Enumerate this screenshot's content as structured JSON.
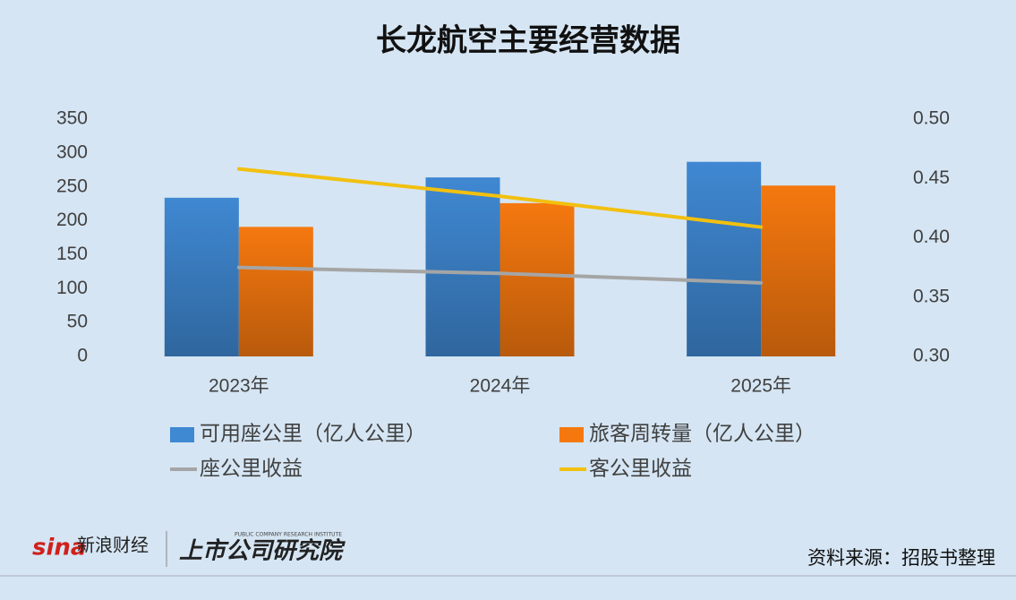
{
  "chart_data": {
    "type": "bar",
    "title": "长龙航空主要经营数据",
    "categories": [
      "2023年",
      "2024年",
      "2025年"
    ],
    "series": [
      {
        "name": "可用座公里（亿人公里）",
        "type": "bar",
        "color": "#3f88d2",
        "values": [
          234,
          264,
          287
        ]
      },
      {
        "name": "旅客周转量（亿人公里）",
        "type": "bar",
        "color": "#f5780f",
        "values": [
          191,
          226,
          252
        ]
      },
      {
        "name": "座公里收益",
        "type": "line",
        "axis": "y2",
        "color": "#a5a5a5",
        "values": [
          0.375,
          0.37,
          0.362
        ]
      },
      {
        "name": "客公里收益",
        "type": "line",
        "axis": "y2",
        "color": "#f2c00f",
        "values": [
          0.458,
          0.435,
          0.409
        ]
      }
    ],
    "ylim": [
      0,
      350
    ],
    "yticks": [
      0,
      50,
      100,
      150,
      200,
      250,
      300,
      350
    ],
    "y2lim": [
      0.3,
      0.5
    ],
    "y2ticks": [
      {
        "value": 0.3,
        "label": "0.30"
      },
      {
        "value": 0.35,
        "label": "0.35"
      },
      {
        "value": 0.4,
        "label": "0.40"
      },
      {
        "value": 0.45,
        "label": "0.45"
      },
      {
        "value": 0.5,
        "label": "0.50"
      }
    ],
    "grid": false
  },
  "footer": {
    "logo": "sina",
    "brand": "新浪财经",
    "institute": "上市公司研究院",
    "institute_en": "PUBLIC COMPANY RESEARCH INSTITUTE",
    "source": "资料来源：招股书整理"
  }
}
